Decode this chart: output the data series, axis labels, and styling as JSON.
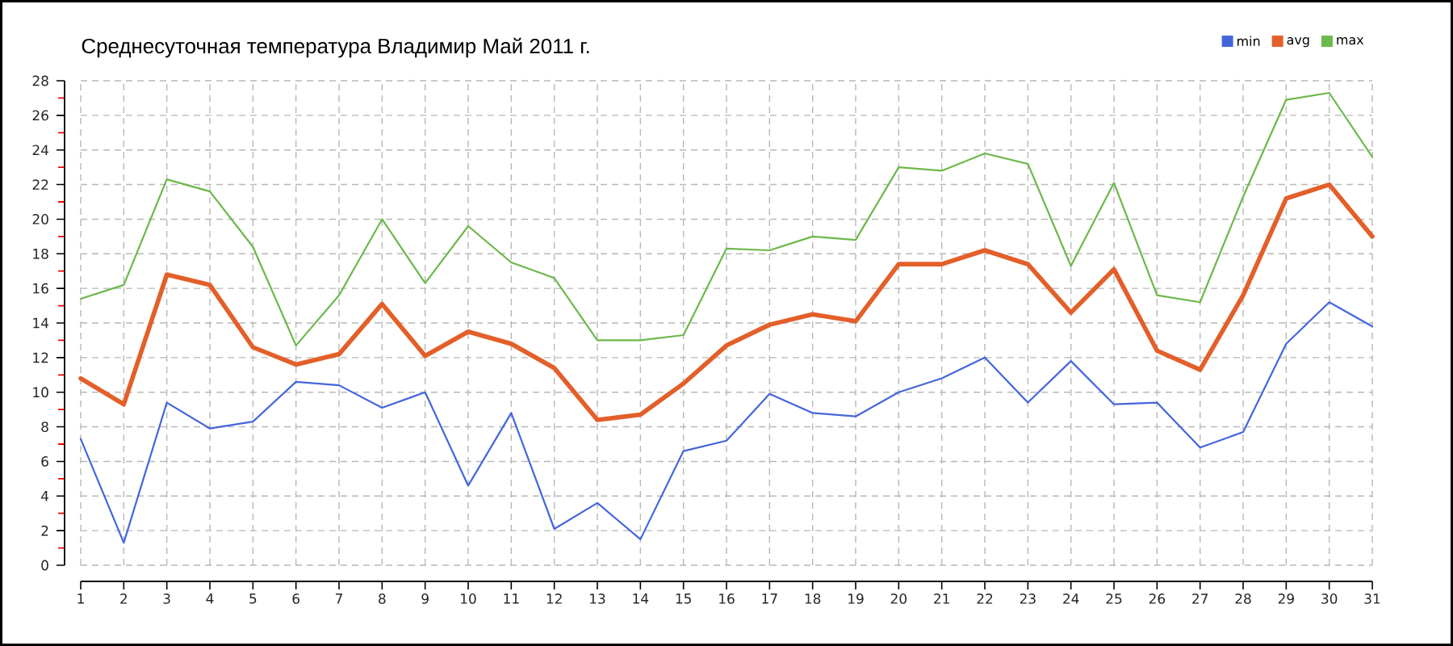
{
  "chart_data": {
    "type": "line",
    "title": "Среднесуточная температура Владимир  Май 2011 г.",
    "x": [
      1,
      2,
      3,
      4,
      5,
      6,
      7,
      8,
      9,
      10,
      11,
      12,
      13,
      14,
      15,
      16,
      17,
      18,
      19,
      20,
      21,
      22,
      23,
      24,
      25,
      26,
      27,
      28,
      29,
      30,
      31
    ],
    "xlim": [
      1,
      31
    ],
    "xticks": [
      1,
      2,
      3,
      4,
      5,
      6,
      7,
      8,
      9,
      10,
      11,
      12,
      13,
      14,
      15,
      16,
      17,
      18,
      19,
      20,
      21,
      22,
      23,
      24,
      25,
      26,
      27,
      28,
      29,
      30,
      31
    ],
    "ylim": [
      0,
      28
    ],
    "yticks": [
      0,
      {
        "value": 1,
        "label": null
      },
      2,
      {
        "value": 3,
        "label": null
      },
      4,
      {
        "value": 5,
        "label": null
      },
      6,
      {
        "value": 7,
        "label": null
      },
      8,
      {
        "value": 9,
        "label": null
      },
      10,
      {
        "value": 11,
        "label": null
      },
      12,
      {
        "value": 13,
        "label": null
      },
      14,
      {
        "value": 15,
        "label": null
      },
      16,
      {
        "value": 17,
        "label": null
      },
      18,
      {
        "value": 19,
        "label": null
      },
      20,
      {
        "value": 21,
        "label": null
      },
      22,
      {
        "value": 23,
        "label": null
      },
      24,
      {
        "value": 25,
        "label": null
      },
      26,
      {
        "value": 27,
        "label": null
      },
      28
    ],
    "series": [
      {
        "name": "min",
        "color": "#4466dd",
        "values": [
          7.3,
          1.3,
          9.4,
          7.9,
          8.3,
          10.6,
          10.4,
          9.1,
          10.0,
          4.6,
          8.8,
          2.1,
          3.6,
          1.5,
          6.6,
          7.2,
          9.9,
          8.8,
          8.6,
          10.0,
          10.8,
          12.0,
          9.4,
          11.8,
          9.3,
          9.4,
          6.8,
          7.7,
          12.8,
          15.2,
          13.8
        ]
      },
      {
        "name": "avg",
        "color": "#e35f2a",
        "values": [
          10.8,
          9.3,
          16.8,
          16.2,
          12.6,
          11.6,
          12.2,
          15.1,
          12.1,
          13.5,
          12.8,
          11.4,
          8.4,
          8.7,
          10.5,
          12.7,
          13.9,
          14.5,
          14.1,
          17.4,
          17.4,
          18.2,
          17.4,
          14.6,
          17.1,
          12.4,
          11.3,
          15.6,
          21.2,
          22.0,
          19.0
        ]
      },
      {
        "name": "max",
        "color": "#6cb84a",
        "values": [
          15.4,
          16.2,
          22.3,
          21.6,
          18.4,
          12.7,
          15.6,
          20.0,
          16.3,
          19.6,
          17.5,
          16.6,
          13.0,
          13.0,
          13.3,
          18.3,
          18.2,
          19.0,
          18.8,
          23.0,
          22.8,
          23.8,
          23.2,
          17.3,
          22.1,
          15.6,
          15.2,
          21.3,
          26.9,
          27.3,
          23.6
        ]
      }
    ],
    "grid": true,
    "legend": "top right",
    "marker": "none",
    "line_style": "solid"
  }
}
